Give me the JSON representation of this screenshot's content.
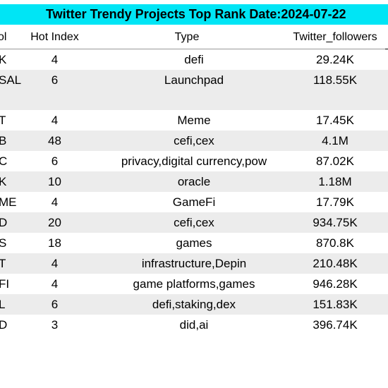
{
  "title": "Twitter Trendy Projects Top Rank Date:2024-07-22",
  "headers": {
    "symbol": "ol",
    "hot_index": "Hot Index",
    "type": "Type",
    "followers": "Twitter_followers"
  },
  "rows": [
    {
      "symbol": "K",
      "hot": "4",
      "type": "defi",
      "followers": "29.24K"
    },
    {
      "symbol": "SAL",
      "hot": "6",
      "type": "Launchpad",
      "followers": "118.55K"
    },
    {
      "symbol": "T",
      "hot": "4",
      "type": "Meme",
      "followers": "17.45K"
    },
    {
      "symbol": "B",
      "hot": "48",
      "type": "cefi,cex",
      "followers": "4.1M"
    },
    {
      "symbol": "C",
      "hot": "6",
      "type": "privacy,digital currency,pow",
      "followers": "87.02K"
    },
    {
      "symbol": "K",
      "hot": "10",
      "type": "oracle",
      "followers": "1.18M"
    },
    {
      "symbol": "ME",
      "hot": "4",
      "type": "GameFi",
      "followers": "17.79K"
    },
    {
      "symbol": "D",
      "hot": "20",
      "type": "cefi,cex",
      "followers": "934.75K"
    },
    {
      "symbol": "S",
      "hot": "18",
      "type": "games",
      "followers": "870.8K"
    },
    {
      "symbol": "T",
      "hot": "4",
      "type": "infrastructure,Depin",
      "followers": "210.48K"
    },
    {
      "symbol": "FI",
      "hot": "4",
      "type": "game platforms,games",
      "followers": "946.28K"
    },
    {
      "symbol": "L",
      "hot": "6",
      "type": "defi,staking,dex",
      "followers": "151.83K"
    },
    {
      "symbol": "D",
      "hot": "3",
      "type": "did,ai",
      "followers": "396.74K"
    }
  ],
  "colors": {
    "title_bg": "#00e5f5",
    "alt_row": "#ececec"
  }
}
